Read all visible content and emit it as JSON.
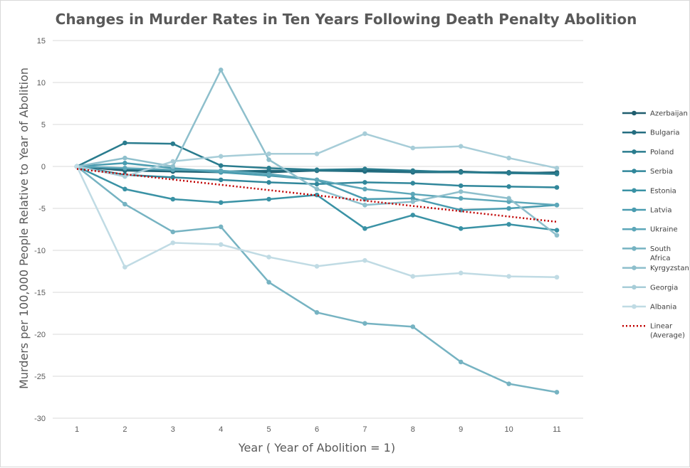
{
  "chart_data": {
    "type": "line",
    "title": "Changes in Murder Rates in Ten Years Following Death Penalty Abolition",
    "xlabel": "Year ( Year of Abolition = 1)",
    "ylabel": "Murders per 100,000 People Relative to Year of Abolition",
    "x": [
      1,
      2,
      3,
      4,
      5,
      6,
      7,
      8,
      9,
      10,
      11
    ],
    "ylim": [
      -30,
      15
    ],
    "yticks": [
      15,
      10,
      5,
      0,
      -5,
      -10,
      -15,
      -20,
      -25,
      -30
    ],
    "grid": "horizontal",
    "legend_position": "right",
    "series": [
      {
        "name": "Azerbaijan",
        "color": "#1f5d6e",
        "values": [
          0,
          -0.5,
          -0.6,
          -0.7,
          -0.7,
          -0.5,
          -0.5,
          -0.6,
          -0.6,
          -0.8,
          -0.7
        ]
      },
      {
        "name": "Bulgaria",
        "color": "#246d80",
        "values": [
          0,
          -0.4,
          -0.5,
          -0.6,
          -0.5,
          -0.5,
          -0.6,
          -0.7,
          -0.7,
          -0.7,
          -0.8
        ]
      },
      {
        "name": "Poland",
        "color": "#2a7c8e",
        "values": [
          0,
          2.8,
          2.7,
          0.1,
          -0.2,
          -0.4,
          -0.3,
          -0.5,
          -0.7,
          -0.8,
          -0.9
        ]
      },
      {
        "name": "Serbia",
        "color": "#31879b",
        "values": [
          0,
          -1.0,
          -1.3,
          -1.6,
          -1.9,
          -2.1,
          -1.9,
          -2.0,
          -2.3,
          -2.4,
          -2.5
        ]
      },
      {
        "name": "Estonia",
        "color": "#3a92a5",
        "values": [
          0,
          -2.7,
          -3.9,
          -4.3,
          -3.9,
          -3.4,
          -7.4,
          -5.8,
          -7.4,
          -6.9,
          -7.6
        ]
      },
      {
        "name": "Latvia",
        "color": "#4a9cb0",
        "values": [
          0,
          0.4,
          -0.2,
          -0.7,
          -1.1,
          -1.6,
          -3.9,
          -3.8,
          -5.2,
          -5.0,
          -4.6
        ]
      },
      {
        "name": "Ukraine",
        "color": "#5da7b9",
        "values": [
          0,
          -0.2,
          -0.4,
          -0.5,
          -0.9,
          -1.6,
          -2.7,
          -3.3,
          -3.8,
          -4.2,
          -4.6
        ]
      },
      {
        "name": "South Africa",
        "color": "#76b3c2",
        "values": [
          0,
          -4.5,
          -7.8,
          -7.2,
          -13.8,
          -17.4,
          -18.7,
          -19.1,
          -23.3,
          -25.9,
          -26.9
        ]
      },
      {
        "name": "Kyrgyzstan",
        "color": "#8ebfcc",
        "values": [
          0,
          1.0,
          0.0,
          11.5,
          0.8,
          -2.7,
          -4.6,
          -4.2,
          -3.0,
          -3.8,
          -8.2
        ]
      },
      {
        "name": "Georgia",
        "color": "#a7cdd8",
        "values": [
          0,
          -1.2,
          0.6,
          1.2,
          1.5,
          1.5,
          3.9,
          2.2,
          2.4,
          1.0,
          -0.2
        ]
      },
      {
        "name": "Albania",
        "color": "#c0dbe4",
        "values": [
          0,
          -12.0,
          -9.1,
          -9.3,
          -10.8,
          -11.9,
          -11.2,
          -13.1,
          -12.7,
          -13.1,
          -13.2
        ]
      }
    ],
    "trendline": {
      "name": "Linear (Average)",
      "color": "#c00000",
      "start": [
        1,
        -0.3
      ],
      "end": [
        11,
        -6.6
      ]
    }
  }
}
